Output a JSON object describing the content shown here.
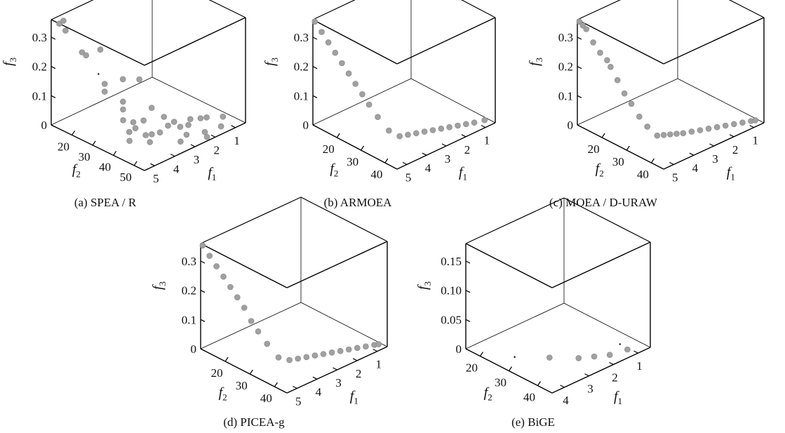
{
  "chart_data": [
    {
      "type": "scatter",
      "caption": "(a)  SPEA / R",
      "axis_labels": {
        "f1": "f",
        "f1_sub": "1",
        "f2": "f",
        "f2_sub": "2",
        "f3": "f",
        "f3_sub": "3"
      },
      "f3_ticks": [
        "0",
        "0.1",
        "0.2",
        "0.3"
      ],
      "f2_ticks": [
        "20",
        "30",
        "40",
        "50"
      ],
      "f1_ticks": [
        "5",
        "4",
        "3",
        "2",
        "1"
      ],
      "zlim": [
        0,
        0.36
      ],
      "xlim": [
        10,
        55
      ],
      "ylim": [
        0.5,
        5.5
      ],
      "marker_color": "#a0a0a0",
      "points": [
        {
          "f2": 11,
          "f1": 5.2,
          "f3": 0.34
        },
        {
          "f2": 12,
          "f1": 5.1,
          "f3": 0.35
        },
        {
          "f2": 13,
          "f1": 5.1,
          "f3": 0.32
        },
        {
          "f2": 19,
          "f1": 4.9,
          "f3": 0.26
        },
        {
          "f2": 20,
          "f1": 4.8,
          "f3": 0.25
        },
        {
          "f2": 22,
          "f1": 4.3,
          "f3": 0.26
        },
        {
          "f2": 27,
          "f1": 4.6,
          "f3": 0.17
        },
        {
          "f2": 28,
          "f1": 4.7,
          "f3": 0.15
        },
        {
          "f2": 29,
          "f1": 3.9,
          "f3": 0.17
        },
        {
          "f2": 30,
          "f1": 4.0,
          "f3": 0.1
        },
        {
          "f2": 31,
          "f1": 4.1,
          "f3": 0.08
        },
        {
          "f2": 32,
          "f1": 4.2,
          "f3": 0.05
        },
        {
          "f2": 33,
          "f1": 3.5,
          "f3": 0.17
        },
        {
          "f2": 34,
          "f1": 3.9,
          "f3": 0.04
        },
        {
          "f2": 35,
          "f1": 4.2,
          "f3": 0.02
        },
        {
          "f2": 36,
          "f1": 4.0,
          "f3": 0.03
        },
        {
          "f2": 37,
          "f1": 3.7,
          "f3": 0.05
        },
        {
          "f2": 37,
          "f1": 3.3,
          "f3": 0.08
        },
        {
          "f2": 38,
          "f1": 4.5,
          "f3": 0.01
        },
        {
          "f2": 39,
          "f1": 3.8,
          "f3": 0.01
        },
        {
          "f2": 40,
          "f1": 3.6,
          "f3": 0.01
        },
        {
          "f2": 40,
          "f1": 3.0,
          "f3": 0.05
        },
        {
          "f2": 41,
          "f1": 3.3,
          "f3": 0.01
        },
        {
          "f2": 41,
          "f1": 2.9,
          "f3": 0.02
        },
        {
          "f2": 42,
          "f1": 2.7,
          "f3": 0.03
        },
        {
          "f2": 42,
          "f1": 3.9,
          "f3": 0.0
        },
        {
          "f2": 43,
          "f1": 2.5,
          "f3": 0.01
        },
        {
          "f2": 43,
          "f1": 2.0,
          "f3": 0.02
        },
        {
          "f2": 44,
          "f1": 2.2,
          "f3": 0.01
        },
        {
          "f2": 45,
          "f1": 1.7,
          "f3": 0.02
        },
        {
          "f2": 46,
          "f1": 1.5,
          "f3": 0.02
        },
        {
          "f2": 47,
          "f1": 2.6,
          "f3": 0.0
        },
        {
          "f2": 48,
          "f1": 0.9,
          "f3": 0.01
        },
        {
          "f2": 49,
          "f1": 3.1,
          "f3": 0.0
        },
        {
          "f2": 50,
          "f1": 2.0,
          "f3": 0.0
        },
        {
          "f2": 51,
          "f1": 1.3,
          "f3": 0.0
        },
        {
          "f2": 53,
          "f1": 2.2,
          "f3": 0.0
        }
      ],
      "small_dots": [
        {
          "f2": 25,
          "f1": 4.7,
          "f3": 0.2
        }
      ]
    },
    {
      "type": "scatter",
      "caption": "(b)  ARMOEA",
      "axis_labels": {
        "f1": "f",
        "f1_sub": "1",
        "f2": "f",
        "f2_sub": "2",
        "f3": "f",
        "f3_sub": "3"
      },
      "f3_ticks": [
        "0",
        "0.1",
        "0.2",
        "0.3"
      ],
      "f2_ticks": [
        "20",
        "30",
        "40"
      ],
      "f1_ticks": [
        "5",
        "4",
        "3",
        "2",
        "1"
      ],
      "zlim": [
        0,
        0.36
      ],
      "xlim": [
        10,
        45
      ],
      "ylim": [
        0.5,
        5.5
      ],
      "marker_color": "#a0a0a0",
      "points": [
        {
          "f2": 10,
          "f1": 5.4,
          "f3": 0.35
        },
        {
          "f2": 12,
          "f1": 5.3,
          "f3": 0.32
        },
        {
          "f2": 14,
          "f1": 5.2,
          "f3": 0.29
        },
        {
          "f2": 16,
          "f1": 5.1,
          "f3": 0.26
        },
        {
          "f2": 18,
          "f1": 5.0,
          "f3": 0.23
        },
        {
          "f2": 20,
          "f1": 4.9,
          "f3": 0.2
        },
        {
          "f2": 22,
          "f1": 4.8,
          "f3": 0.17
        },
        {
          "f2": 24,
          "f1": 4.7,
          "f3": 0.14
        },
        {
          "f2": 26,
          "f1": 4.6,
          "f3": 0.11
        },
        {
          "f2": 28,
          "f1": 4.4,
          "f3": 0.07
        },
        {
          "f2": 31,
          "f1": 4.2,
          "f3": 0.03
        },
        {
          "f2": 33,
          "f1": 3.9,
          "f3": 0.01
        },
        {
          "f2": 34,
          "f1": 3.6,
          "f3": 0.01
        },
        {
          "f2": 35,
          "f1": 3.3,
          "f3": 0.01
        },
        {
          "f2": 36,
          "f1": 3.0,
          "f3": 0.01
        },
        {
          "f2": 37,
          "f1": 2.7,
          "f3": 0.01
        },
        {
          "f2": 38,
          "f1": 2.4,
          "f3": 0.01
        },
        {
          "f2": 39,
          "f1": 2.1,
          "f3": 0.01
        },
        {
          "f2": 40,
          "f1": 1.8,
          "f3": 0.01
        },
        {
          "f2": 41,
          "f1": 1.5,
          "f3": 0.01
        },
        {
          "f2": 42,
          "f1": 1.2,
          "f3": 0.01
        },
        {
          "f2": 43,
          "f1": 0.8,
          "f3": 0.01
        }
      ],
      "small_dots": []
    },
    {
      "type": "scatter",
      "caption": "(c)  MOEA / D-URAW",
      "axis_labels": {
        "f1": "f",
        "f1_sub": "1",
        "f2": "f",
        "f2_sub": "2",
        "f3": "f",
        "f3_sub": "3"
      },
      "f3_ticks": [
        "0",
        "0.1",
        "0.2",
        "0.3"
      ],
      "f2_ticks": [
        "20",
        "30",
        "40"
      ],
      "f1_ticks": [
        "5",
        "4",
        "3",
        "2",
        "1"
      ],
      "zlim": [
        0,
        0.36
      ],
      "xlim": [
        10,
        45
      ],
      "ylim": [
        0.5,
        5.5
      ],
      "marker_color": "#a0a0a0",
      "points": [
        {
          "f2": 10,
          "f1": 5.4,
          "f3": 0.35
        },
        {
          "f2": 11,
          "f1": 5.35,
          "f3": 0.34
        },
        {
          "f2": 12,
          "f1": 5.3,
          "f3": 0.33
        },
        {
          "f2": 14,
          "f1": 5.2,
          "f3": 0.29
        },
        {
          "f2": 16,
          "f1": 5.1,
          "f3": 0.26
        },
        {
          "f2": 18,
          "f1": 5.0,
          "f3": 0.24
        },
        {
          "f2": 19,
          "f1": 4.95,
          "f3": 0.22
        },
        {
          "f2": 21,
          "f1": 4.85,
          "f3": 0.18
        },
        {
          "f2": 23,
          "f1": 4.75,
          "f3": 0.14
        },
        {
          "f2": 25,
          "f1": 4.65,
          "f3": 0.11
        },
        {
          "f2": 27,
          "f1": 4.5,
          "f3": 0.07
        },
        {
          "f2": 29,
          "f1": 4.35,
          "f3": 0.04
        },
        {
          "f2": 31,
          "f1": 4.1,
          "f3": 0.01
        },
        {
          "f2": 32,
          "f1": 3.9,
          "f3": 0.01
        },
        {
          "f2": 33,
          "f1": 3.7,
          "f3": 0.01
        },
        {
          "f2": 34,
          "f1": 3.5,
          "f3": 0.01
        },
        {
          "f2": 35,
          "f1": 3.3,
          "f3": 0.01
        },
        {
          "f2": 36,
          "f1": 3.0,
          "f3": 0.01
        },
        {
          "f2": 37,
          "f1": 2.7,
          "f3": 0.01
        },
        {
          "f2": 38,
          "f1": 2.4,
          "f3": 0.01
        },
        {
          "f2": 39,
          "f1": 2.1,
          "f3": 0.01
        },
        {
          "f2": 40,
          "f1": 1.8,
          "f3": 0.01
        },
        {
          "f2": 41,
          "f1": 1.5,
          "f3": 0.01
        },
        {
          "f2": 42,
          "f1": 1.2,
          "f3": 0.01
        },
        {
          "f2": 43,
          "f1": 0.9,
          "f3": 0.01
        },
        {
          "f2": 43.5,
          "f1": 0.75,
          "f3": 0.01
        }
      ],
      "small_dots": []
    },
    {
      "type": "scatter",
      "caption": "(d)  PICEA-g",
      "axis_labels": {
        "f1": "f",
        "f1_sub": "1",
        "f2": "f",
        "f2_sub": "2",
        "f3": "f",
        "f3_sub": "3"
      },
      "f3_ticks": [
        "0",
        "0.1",
        "0.2",
        "0.3"
      ],
      "f2_ticks": [
        "20",
        "30",
        "40"
      ],
      "f1_ticks": [
        "5",
        "4",
        "3",
        "2",
        "1"
      ],
      "zlim": [
        0,
        0.36
      ],
      "xlim": [
        10,
        45
      ],
      "ylim": [
        0.5,
        5.5
      ],
      "marker_color": "#a0a0a0",
      "points": [
        {
          "f2": 10,
          "f1": 5.4,
          "f3": 0.35
        },
        {
          "f2": 12,
          "f1": 5.3,
          "f3": 0.32
        },
        {
          "f2": 14,
          "f1": 5.2,
          "f3": 0.29
        },
        {
          "f2": 16,
          "f1": 5.1,
          "f3": 0.26
        },
        {
          "f2": 18,
          "f1": 5.0,
          "f3": 0.23
        },
        {
          "f2": 20,
          "f1": 4.9,
          "f3": 0.2
        },
        {
          "f2": 22,
          "f1": 4.8,
          "f3": 0.17
        },
        {
          "f2": 24,
          "f1": 4.7,
          "f3": 0.13
        },
        {
          "f2": 26,
          "f1": 4.6,
          "f3": 0.1
        },
        {
          "f2": 28,
          "f1": 4.4,
          "f3": 0.06
        },
        {
          "f2": 31,
          "f1": 4.2,
          "f3": 0.02
        },
        {
          "f2": 33,
          "f1": 3.9,
          "f3": 0.01
        },
        {
          "f2": 34,
          "f1": 3.6,
          "f3": 0.01
        },
        {
          "f2": 35,
          "f1": 3.3,
          "f3": 0.01
        },
        {
          "f2": 36,
          "f1": 3.0,
          "f3": 0.01
        },
        {
          "f2": 37,
          "f1": 2.7,
          "f3": 0.01
        },
        {
          "f2": 38,
          "f1": 2.4,
          "f3": 0.01
        },
        {
          "f2": 39,
          "f1": 2.1,
          "f3": 0.01
        },
        {
          "f2": 40,
          "f1": 1.8,
          "f3": 0.01
        },
        {
          "f2": 41,
          "f1": 1.5,
          "f3": 0.01
        },
        {
          "f2": 42,
          "f1": 1.2,
          "f3": 0.01
        },
        {
          "f2": 43,
          "f1": 0.9,
          "f3": 0.01
        },
        {
          "f2": 43.5,
          "f1": 0.75,
          "f3": 0.01
        }
      ],
      "small_dots": []
    },
    {
      "type": "scatter",
      "caption": "(e)  BiGE",
      "axis_labels": {
        "f1": "f",
        "f1_sub": "1",
        "f2": "f",
        "f2_sub": "2",
        "f3": "f",
        "f3_sub": "3"
      },
      "f3_ticks": [
        "0",
        "0.05",
        "0.10",
        "0.15"
      ],
      "f2_ticks": [
        "20",
        "30",
        "40"
      ],
      "f1_ticks": [
        "4",
        "3",
        "2",
        "1"
      ],
      "zlim": [
        0,
        0.18
      ],
      "xlim": [
        15,
        45
      ],
      "ylim": [
        0.5,
        4.5
      ],
      "marker_color": "#a0a0a0",
      "points": [
        {
          "f2": 33,
          "f1": 3.2,
          "f3": 0.005
        },
        {
          "f2": 38,
          "f1": 2.6,
          "f3": 0.005
        },
        {
          "f2": 40,
          "f1": 2.2,
          "f3": 0.005
        },
        {
          "f2": 42,
          "f1": 1.8,
          "f3": 0.005
        },
        {
          "f2": 43,
          "f1": 1.2,
          "f3": 0.005
        }
      ],
      "small_dots": [
        {
          "f2": 26,
          "f1": 3.8,
          "f3": 0.0
        },
        {
          "f2": 43,
          "f1": 1.5,
          "f3": 0.02
        }
      ]
    }
  ]
}
